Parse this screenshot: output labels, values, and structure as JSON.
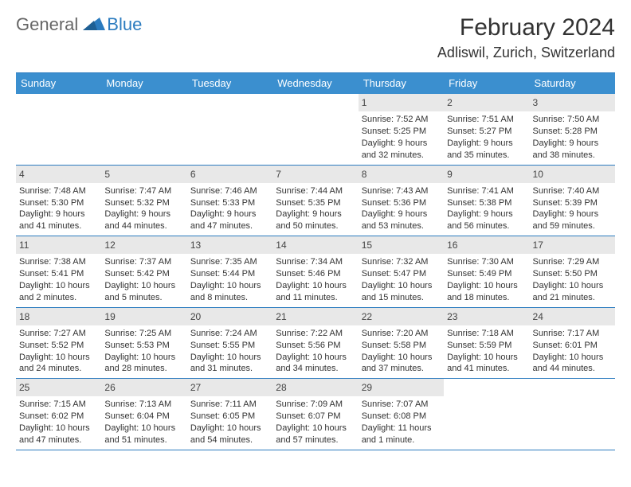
{
  "brand": {
    "part1": "General",
    "part2": "Blue",
    "logo_color": "#2b7bbf"
  },
  "title": "February 2024",
  "location": "Adliswil, Zurich, Switzerland",
  "colors": {
    "header_bg": "#3b8fcf",
    "daynum_bg": "#e8e8e8",
    "rule": "#2b7bbf",
    "text": "#333333"
  },
  "day_headers": [
    "Sunday",
    "Monday",
    "Tuesday",
    "Wednesday",
    "Thursday",
    "Friday",
    "Saturday"
  ],
  "weeks": [
    [
      {
        "n": "",
        "sunrise": "",
        "sunset": "",
        "daylight": ""
      },
      {
        "n": "",
        "sunrise": "",
        "sunset": "",
        "daylight": ""
      },
      {
        "n": "",
        "sunrise": "",
        "sunset": "",
        "daylight": ""
      },
      {
        "n": "",
        "sunrise": "",
        "sunset": "",
        "daylight": ""
      },
      {
        "n": "1",
        "sunrise": "Sunrise: 7:52 AM",
        "sunset": "Sunset: 5:25 PM",
        "daylight": "Daylight: 9 hours and 32 minutes."
      },
      {
        "n": "2",
        "sunrise": "Sunrise: 7:51 AM",
        "sunset": "Sunset: 5:27 PM",
        "daylight": "Daylight: 9 hours and 35 minutes."
      },
      {
        "n": "3",
        "sunrise": "Sunrise: 7:50 AM",
        "sunset": "Sunset: 5:28 PM",
        "daylight": "Daylight: 9 hours and 38 minutes."
      }
    ],
    [
      {
        "n": "4",
        "sunrise": "Sunrise: 7:48 AM",
        "sunset": "Sunset: 5:30 PM",
        "daylight": "Daylight: 9 hours and 41 minutes."
      },
      {
        "n": "5",
        "sunrise": "Sunrise: 7:47 AM",
        "sunset": "Sunset: 5:32 PM",
        "daylight": "Daylight: 9 hours and 44 minutes."
      },
      {
        "n": "6",
        "sunrise": "Sunrise: 7:46 AM",
        "sunset": "Sunset: 5:33 PM",
        "daylight": "Daylight: 9 hours and 47 minutes."
      },
      {
        "n": "7",
        "sunrise": "Sunrise: 7:44 AM",
        "sunset": "Sunset: 5:35 PM",
        "daylight": "Daylight: 9 hours and 50 minutes."
      },
      {
        "n": "8",
        "sunrise": "Sunrise: 7:43 AM",
        "sunset": "Sunset: 5:36 PM",
        "daylight": "Daylight: 9 hours and 53 minutes."
      },
      {
        "n": "9",
        "sunrise": "Sunrise: 7:41 AM",
        "sunset": "Sunset: 5:38 PM",
        "daylight": "Daylight: 9 hours and 56 minutes."
      },
      {
        "n": "10",
        "sunrise": "Sunrise: 7:40 AM",
        "sunset": "Sunset: 5:39 PM",
        "daylight": "Daylight: 9 hours and 59 minutes."
      }
    ],
    [
      {
        "n": "11",
        "sunrise": "Sunrise: 7:38 AM",
        "sunset": "Sunset: 5:41 PM",
        "daylight": "Daylight: 10 hours and 2 minutes."
      },
      {
        "n": "12",
        "sunrise": "Sunrise: 7:37 AM",
        "sunset": "Sunset: 5:42 PM",
        "daylight": "Daylight: 10 hours and 5 minutes."
      },
      {
        "n": "13",
        "sunrise": "Sunrise: 7:35 AM",
        "sunset": "Sunset: 5:44 PM",
        "daylight": "Daylight: 10 hours and 8 minutes."
      },
      {
        "n": "14",
        "sunrise": "Sunrise: 7:34 AM",
        "sunset": "Sunset: 5:46 PM",
        "daylight": "Daylight: 10 hours and 11 minutes."
      },
      {
        "n": "15",
        "sunrise": "Sunrise: 7:32 AM",
        "sunset": "Sunset: 5:47 PM",
        "daylight": "Daylight: 10 hours and 15 minutes."
      },
      {
        "n": "16",
        "sunrise": "Sunrise: 7:30 AM",
        "sunset": "Sunset: 5:49 PM",
        "daylight": "Daylight: 10 hours and 18 minutes."
      },
      {
        "n": "17",
        "sunrise": "Sunrise: 7:29 AM",
        "sunset": "Sunset: 5:50 PM",
        "daylight": "Daylight: 10 hours and 21 minutes."
      }
    ],
    [
      {
        "n": "18",
        "sunrise": "Sunrise: 7:27 AM",
        "sunset": "Sunset: 5:52 PM",
        "daylight": "Daylight: 10 hours and 24 minutes."
      },
      {
        "n": "19",
        "sunrise": "Sunrise: 7:25 AM",
        "sunset": "Sunset: 5:53 PM",
        "daylight": "Daylight: 10 hours and 28 minutes."
      },
      {
        "n": "20",
        "sunrise": "Sunrise: 7:24 AM",
        "sunset": "Sunset: 5:55 PM",
        "daylight": "Daylight: 10 hours and 31 minutes."
      },
      {
        "n": "21",
        "sunrise": "Sunrise: 7:22 AM",
        "sunset": "Sunset: 5:56 PM",
        "daylight": "Daylight: 10 hours and 34 minutes."
      },
      {
        "n": "22",
        "sunrise": "Sunrise: 7:20 AM",
        "sunset": "Sunset: 5:58 PM",
        "daylight": "Daylight: 10 hours and 37 minutes."
      },
      {
        "n": "23",
        "sunrise": "Sunrise: 7:18 AM",
        "sunset": "Sunset: 5:59 PM",
        "daylight": "Daylight: 10 hours and 41 minutes."
      },
      {
        "n": "24",
        "sunrise": "Sunrise: 7:17 AM",
        "sunset": "Sunset: 6:01 PM",
        "daylight": "Daylight: 10 hours and 44 minutes."
      }
    ],
    [
      {
        "n": "25",
        "sunrise": "Sunrise: 7:15 AM",
        "sunset": "Sunset: 6:02 PM",
        "daylight": "Daylight: 10 hours and 47 minutes."
      },
      {
        "n": "26",
        "sunrise": "Sunrise: 7:13 AM",
        "sunset": "Sunset: 6:04 PM",
        "daylight": "Daylight: 10 hours and 51 minutes."
      },
      {
        "n": "27",
        "sunrise": "Sunrise: 7:11 AM",
        "sunset": "Sunset: 6:05 PM",
        "daylight": "Daylight: 10 hours and 54 minutes."
      },
      {
        "n": "28",
        "sunrise": "Sunrise: 7:09 AM",
        "sunset": "Sunset: 6:07 PM",
        "daylight": "Daylight: 10 hours and 57 minutes."
      },
      {
        "n": "29",
        "sunrise": "Sunrise: 7:07 AM",
        "sunset": "Sunset: 6:08 PM",
        "daylight": "Daylight: 11 hours and 1 minute."
      },
      {
        "n": "",
        "sunrise": "",
        "sunset": "",
        "daylight": ""
      },
      {
        "n": "",
        "sunrise": "",
        "sunset": "",
        "daylight": ""
      }
    ]
  ]
}
